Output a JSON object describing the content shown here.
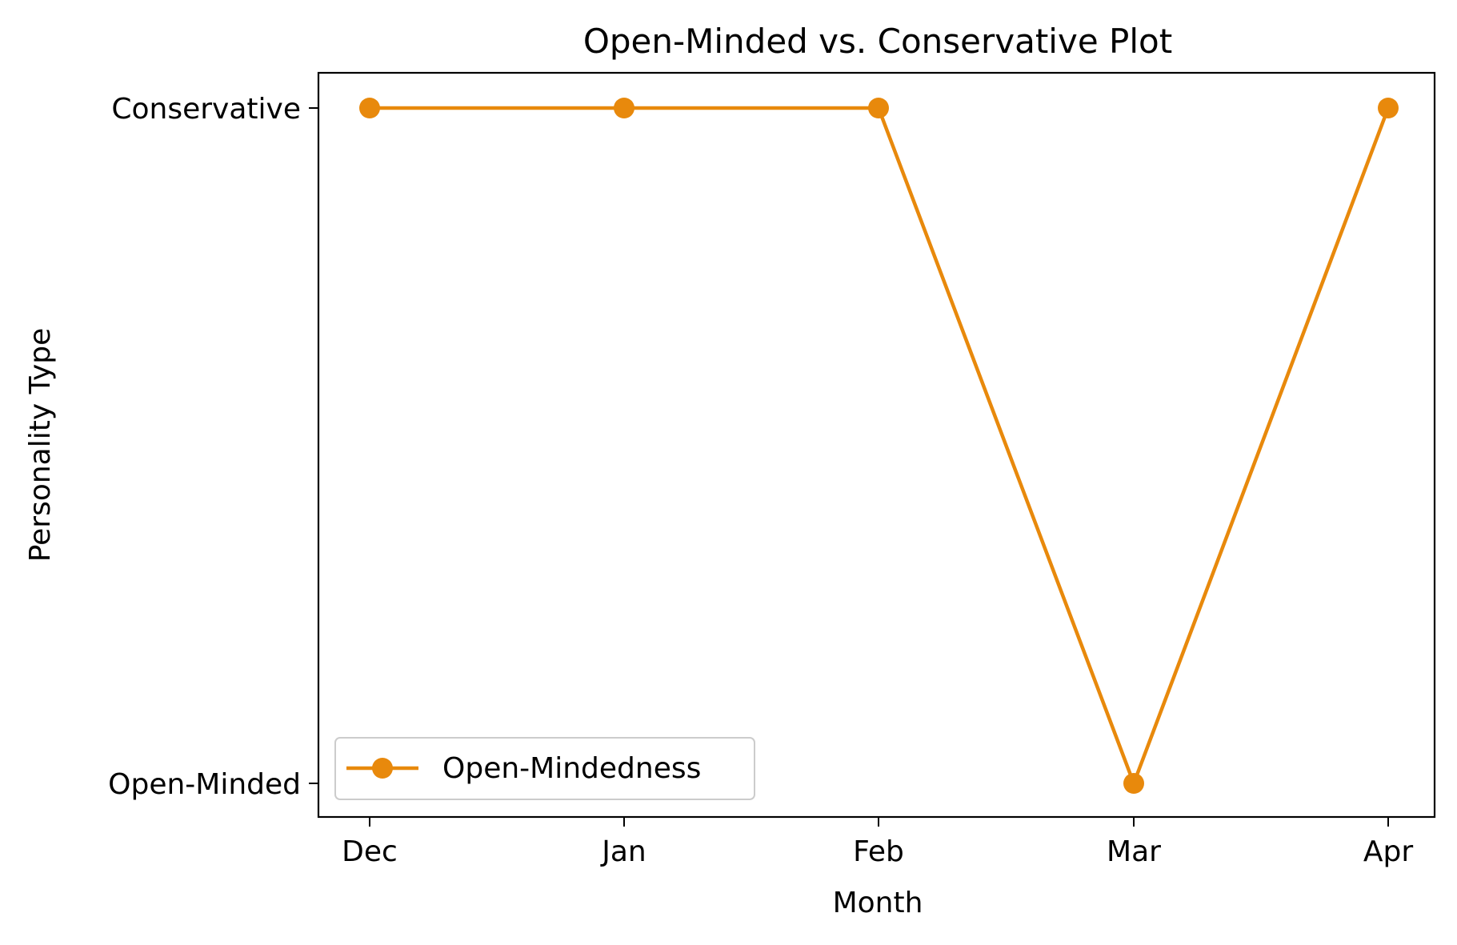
{
  "chart_data": {
    "type": "line",
    "title": "Open-Minded vs. Conservative Plot",
    "xlabel": "Month",
    "ylabel": "Personality Type",
    "categories": [
      "Dec",
      "Jan",
      "Feb",
      "Mar",
      "Apr"
    ],
    "y_categories": [
      "Open-Minded",
      "Conservative"
    ],
    "series": [
      {
        "name": "Open-Mindedness",
        "values": [
          "Conservative",
          "Conservative",
          "Conservative",
          "Open-Minded",
          "Conservative"
        ],
        "color": "#e8890c",
        "marker": "circle"
      }
    ],
    "grid": false,
    "legend_position": "lower-left"
  }
}
